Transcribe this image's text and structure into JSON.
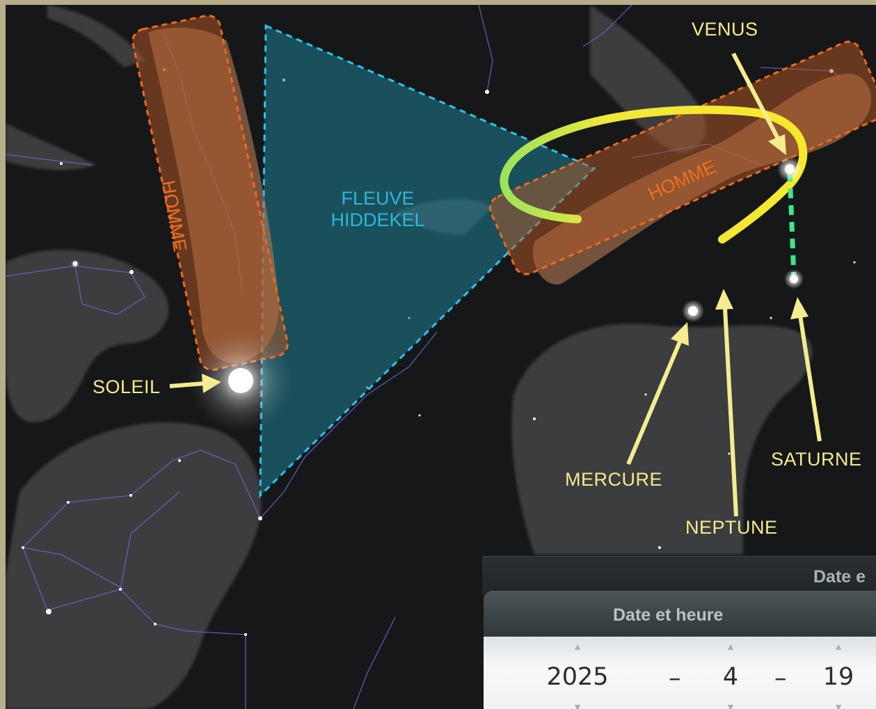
{
  "sky_labels": {
    "soleil": "SOLEIL",
    "venus": "VENUS",
    "mercure": "MERCURE",
    "neptune": "NEPTUNE",
    "saturne": "SATURNE",
    "fleuve": "FLEUVE",
    "hiddekel": "HIDDEKEL",
    "homme_left": "HOMME",
    "homme_right": "HOMME"
  },
  "date_panel": {
    "back_title": "Date e",
    "title": "Date et heure",
    "year": "2025",
    "month": "4",
    "day": "19",
    "separator": "–",
    "up_arrow": "▲",
    "down_arrow": "▼"
  },
  "colors": {
    "label_yellow": "#f4ec8e",
    "river_blue": "#30b6dc",
    "homme_orange": "#ee6f1f",
    "orbit_yellow": "#f2e63a",
    "connector_green": "#3ee58a"
  }
}
